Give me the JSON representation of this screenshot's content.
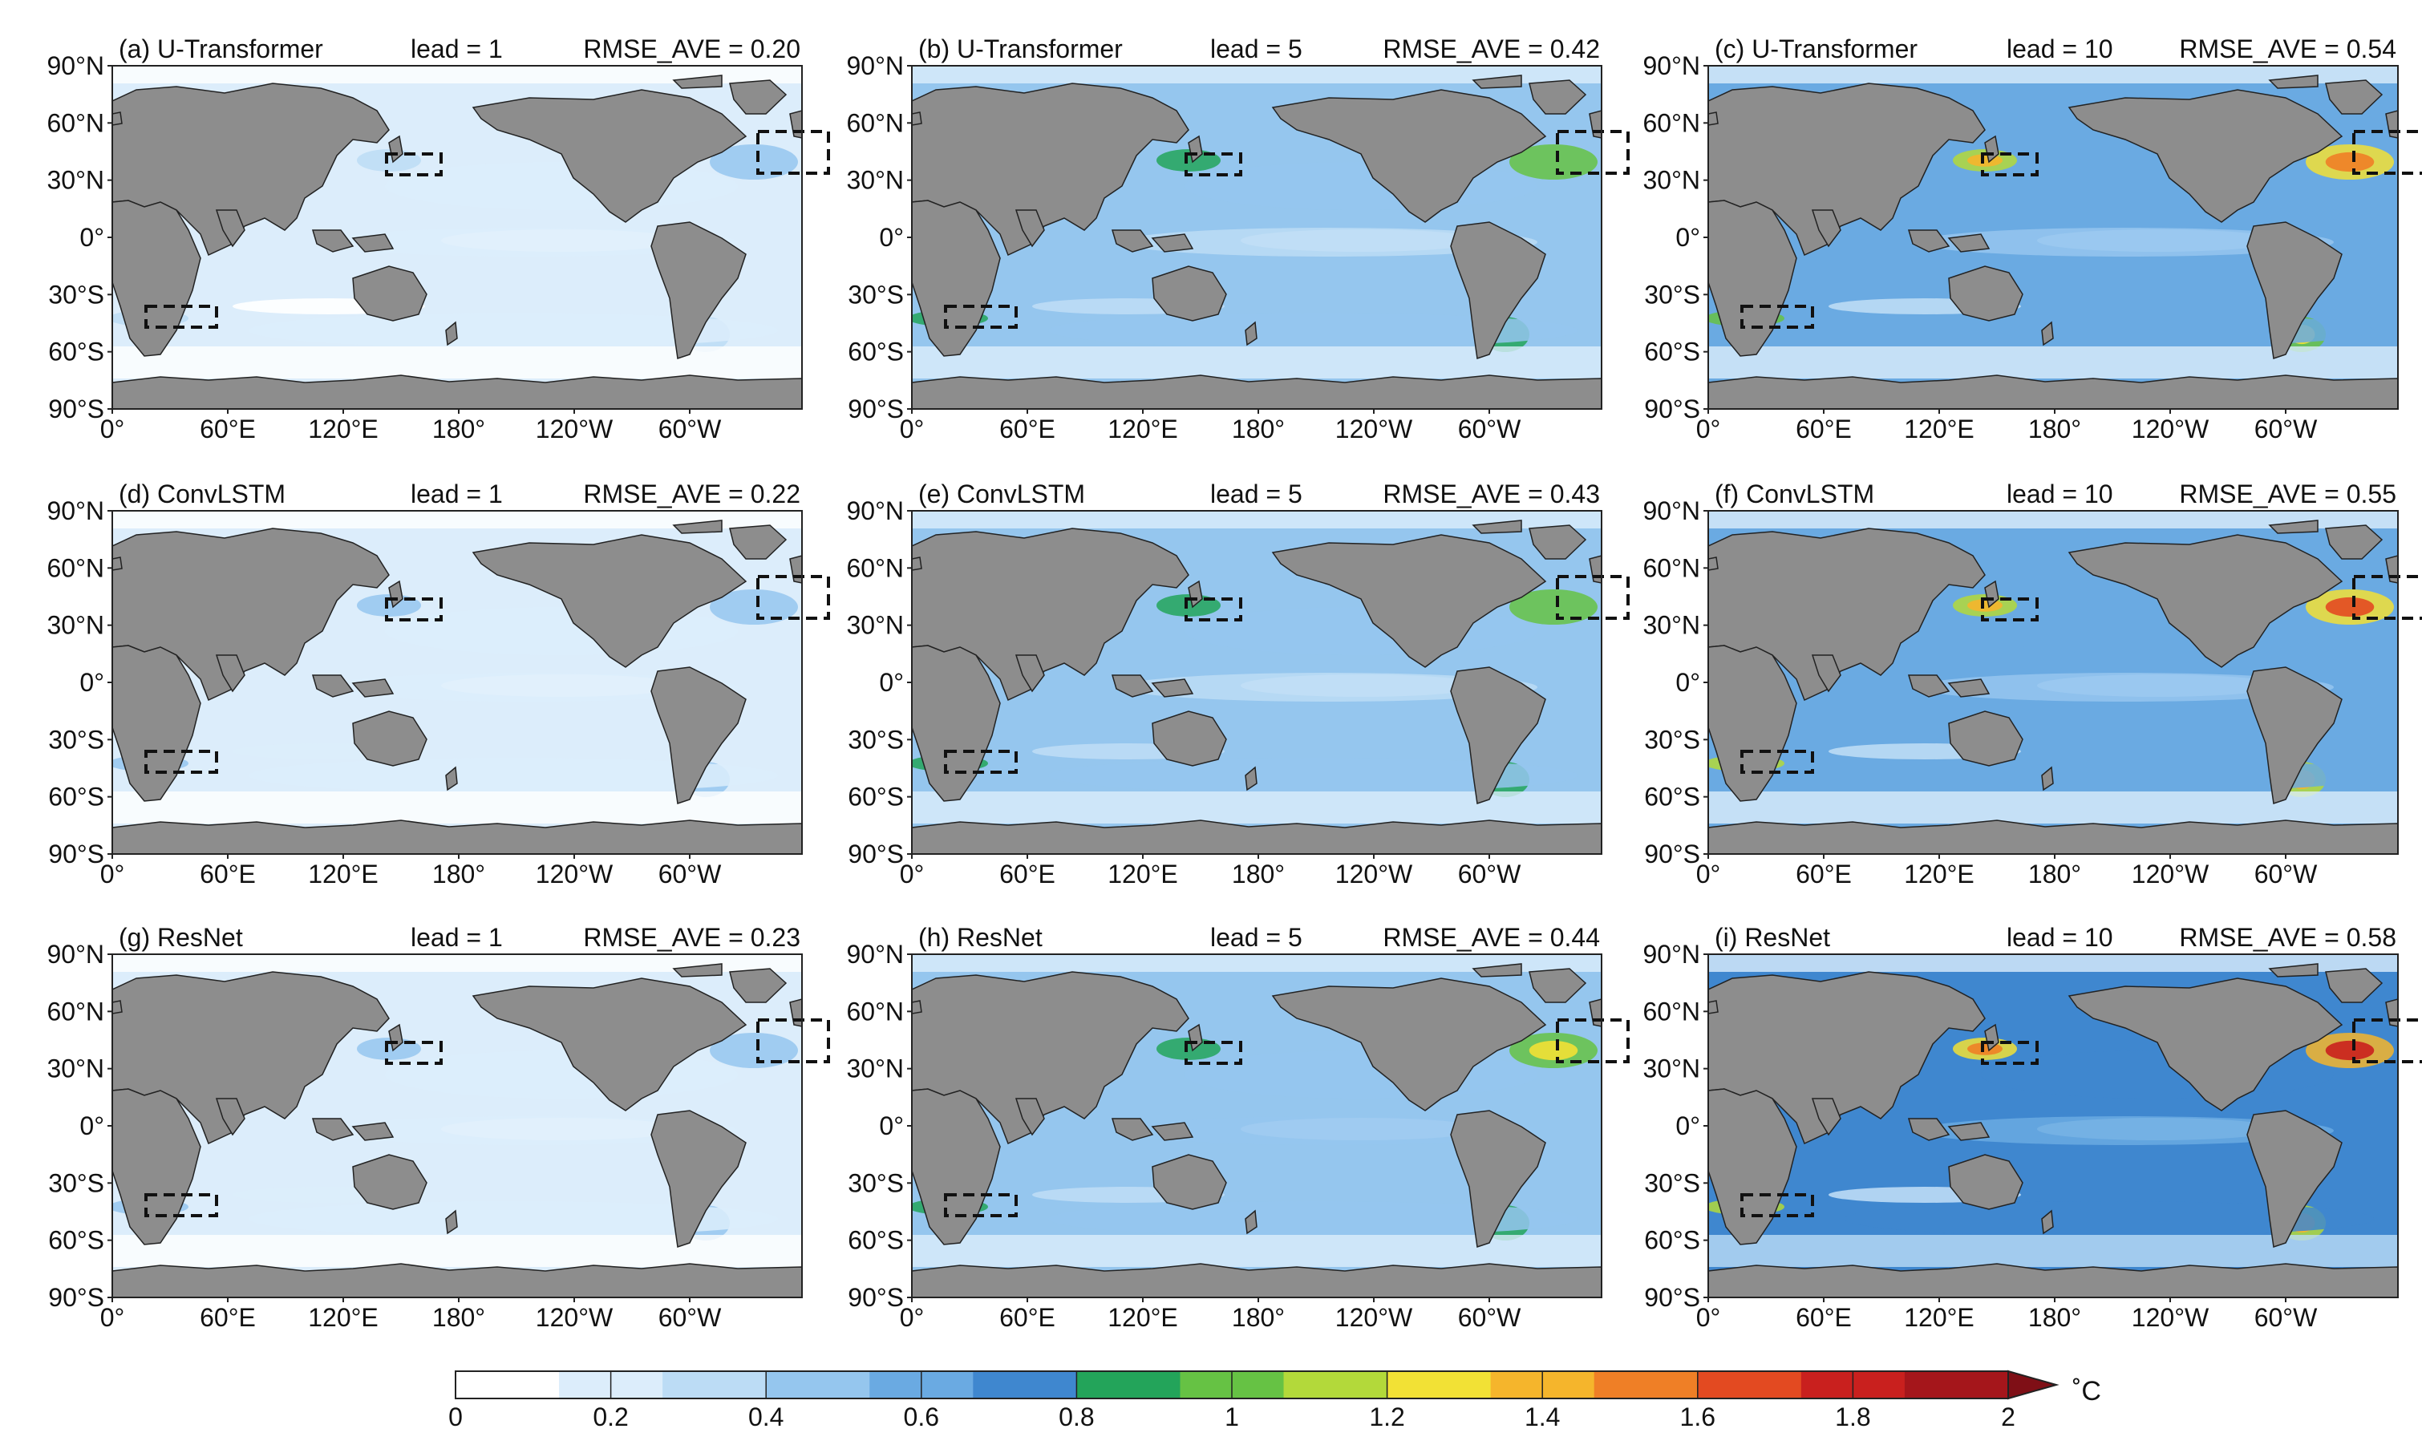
{
  "panels": [
    {
      "label": "(a) U-Transformer",
      "lead": "lead = 1",
      "rmse": "RMSE_AVE = 0.20",
      "level": 0.18
    },
    {
      "label": "(b) U-Transformer",
      "lead": "lead = 5",
      "rmse": "RMSE_AVE = 0.42",
      "level": 0.4
    },
    {
      "label": "(c) U-Transformer",
      "lead": "lead = 10",
      "rmse": "RMSE_AVE = 0.54",
      "level": 0.52
    },
    {
      "label": "(d) ConvLSTM",
      "lead": "lead = 1",
      "rmse": "RMSE_AVE = 0.22",
      "level": 0.2
    },
    {
      "label": "(e) ConvLSTM",
      "lead": "lead = 5",
      "rmse": "RMSE_AVE = 0.43",
      "level": 0.41
    },
    {
      "label": "(f) ConvLSTM",
      "lead": "lead = 10",
      "rmse": "RMSE_AVE = 0.55",
      "level": 0.54
    },
    {
      "label": "(g) ResNet",
      "lead": "lead = 1",
      "rmse": "RMSE_AVE = 0.23",
      "level": 0.21
    },
    {
      "label": "(h) ResNet",
      "lead": "lead = 5",
      "rmse": "RMSE_AVE = 0.44",
      "level": 0.43
    },
    {
      "label": "(i) ResNet",
      "lead": "lead = 10",
      "rmse": "RMSE_AVE = 0.58",
      "level": 0.58
    }
  ],
  "lat_ticks": [
    "90°N",
    "60°N",
    "30°N",
    "0°",
    "30°S",
    "60°S",
    "90°S"
  ],
  "lon_ticks": [
    "0°",
    "60°E",
    "120°E",
    "180°",
    "120°W",
    "60°W"
  ],
  "colorbar": {
    "ticks": [
      "0",
      "0.2",
      "0.4",
      "0.6",
      "0.8",
      "1",
      "1.2",
      "1.4",
      "1.6",
      "1.8",
      "2"
    ],
    "unit": "˚C",
    "colors": [
      "#ffffff",
      "#dcedfb",
      "#bcdcf5",
      "#95c6ee",
      "#6aaae2",
      "#3f87cf",
      "#23a45a",
      "#66c244",
      "#b3d93a",
      "#f2e135",
      "#f5b52c",
      "#ef7f26",
      "#e34a21",
      "#c9201e",
      "#a5161b",
      "#7f0f16"
    ]
  },
  "colors": {
    "land": "#8d8d8d",
    "ocean_base": "#e6f2fc",
    "box": "#111111"
  }
}
